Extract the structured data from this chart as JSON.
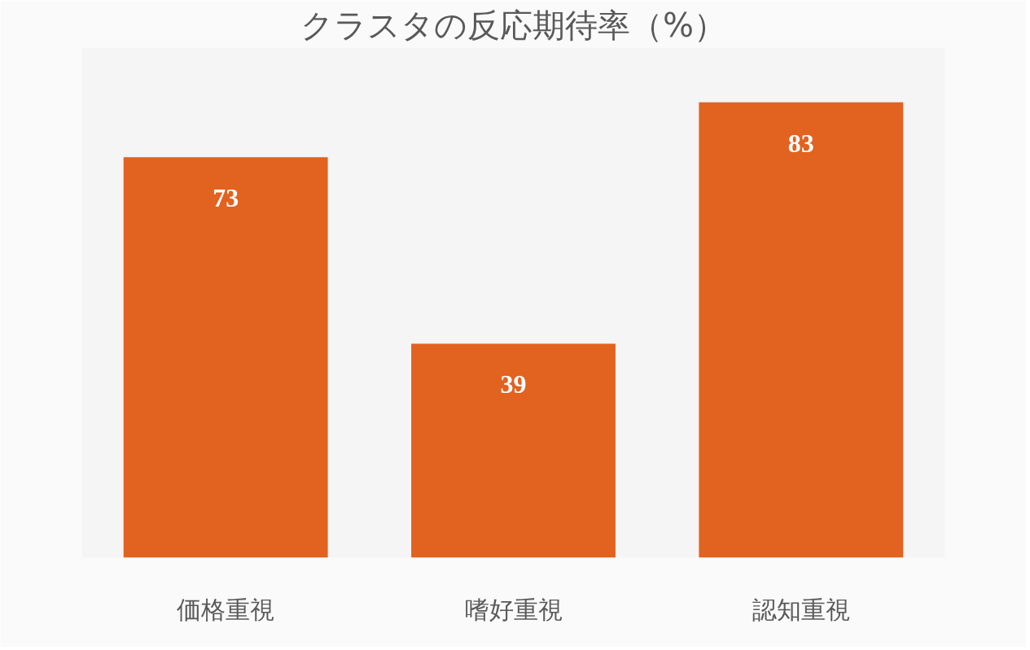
{
  "chart_data": {
    "type": "bar",
    "title": "クラスタの反応期待率（%）",
    "categories": [
      "価格重視",
      "嗜好重視",
      "認知重視"
    ],
    "values": [
      73,
      39,
      83
    ],
    "color": "#e2621f",
    "data_labels": true,
    "grid": false
  }
}
